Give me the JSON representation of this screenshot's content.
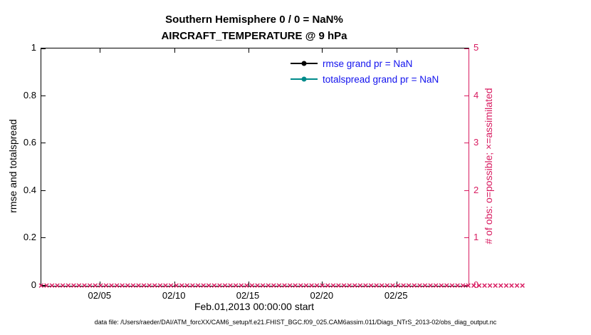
{
  "figure": {
    "title_line1": "Southern Hemisphere 0 / 0 = NaN%",
    "title_line2": "AIRCRAFT_TEMPERATURE @ 9 hPa",
    "caption": "data file: /Users/raeder/DAI/ATM_forcXX/CAM6_setup/f.e21.FHIST_BGC.f09_025.CAM6assim.011/Diags_NTrS_2013-02/obs_diag_output.nc"
  },
  "chart_data": {
    "type": "line",
    "title": "Southern Hemisphere 0 / 0 = NaN% | AIRCRAFT_TEMPERATURE @ 9 hPa",
    "xlabel": "Feb.01,2013 00:00:00 start",
    "ylabel_left": "rmse and totalspread",
    "ylabel_right": "# of obs: o=possible; ×=assimilated",
    "x_range": [
      "02/01/2013",
      "03/01/2013"
    ],
    "x_ticks": [
      "02/05",
      "02/10",
      "02/15",
      "02/20",
      "02/25"
    ],
    "x_tick_positions_pct": [
      13.8,
      31.2,
      48.5,
      65.8,
      83.2
    ],
    "y_left_ticks": [
      "0",
      "0.2",
      "0.4",
      "0.6",
      "0.8",
      "1"
    ],
    "y_left_range": [
      0,
      1
    ],
    "y_right_ticks": [
      "0",
      "1",
      "2",
      "3",
      "4",
      "5"
    ],
    "y_right_range": [
      0,
      5
    ],
    "grid": "off",
    "legend_position": "upper-right-inside, no box",
    "series": [
      {
        "name": "rmse grand pr = NaN",
        "color": "#000000",
        "marker": "filled-circle",
        "values": [],
        "note": "no data plotted (NaN)"
      },
      {
        "name": "totalspread grand pr = NaN",
        "color": "#008b8b",
        "marker": "filled-circle",
        "values": [],
        "note": "no data plotted (NaN)"
      },
      {
        "name": "# of obs possible/assimilated",
        "color": "#d81b60",
        "marker": "×",
        "constant_value": 0,
        "marker_count": 90,
        "note": "dense row of pink markers along y=0 across the whole x range"
      }
    ]
  },
  "colors": {
    "pink": "#d81b60",
    "teal": "#008b8b",
    "legend_text_blue": "#1212ee",
    "axis_black": "#000000",
    "background": "#ffffff"
  }
}
